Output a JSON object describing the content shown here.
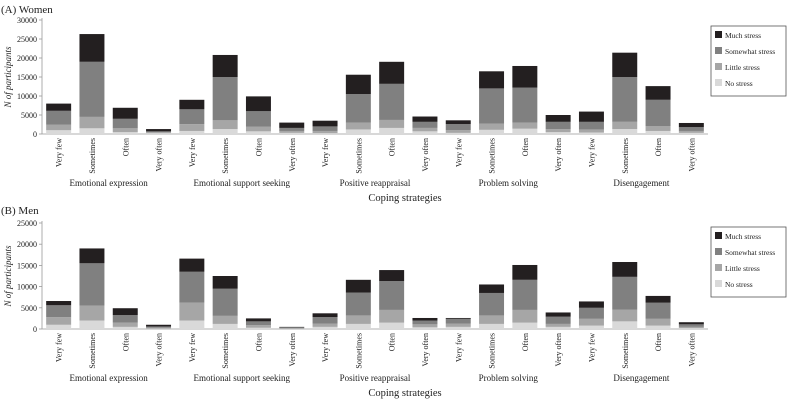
{
  "chart_data": [
    {
      "type": "bar",
      "stacked": true,
      "panel_label": "(A) Women",
      "ylabel": "N of participants",
      "xlabel": "Coping strategies",
      "ylim": [
        0,
        30000
      ],
      "yticks": [
        0,
        5000,
        10000,
        15000,
        20000,
        25000,
        30000
      ],
      "groups": [
        "Emotional expression",
        "Emotional support seeking",
        "Positive reappraisal",
        "Problem solving",
        "Disengagement"
      ],
      "categories": [
        "Very few",
        "Sometimes",
        "Often",
        "Very often"
      ],
      "series": [
        {
          "name": "No stress",
          "color": "#d9d9d9",
          "values": [
            [
              1000,
              1500,
              500,
              200
            ],
            [
              800,
              1300,
              700,
              300
            ],
            [
              200,
              1200,
              1600,
              700
            ],
            [
              300,
              1100,
              1400,
              500
            ],
            [
              400,
              1300,
              800,
              300
            ]
          ]
        },
        {
          "name": "Little stress",
          "color": "#a6a6a6",
          "values": [
            [
              1500,
              3000,
              1000,
              300
            ],
            [
              1800,
              2300,
              1200,
              500
            ],
            [
              600,
              1800,
              2100,
              900
            ],
            [
              700,
              1600,
              1600,
              800
            ],
            [
              800,
              1900,
              1300,
              500
            ]
          ]
        },
        {
          "name": "Somewhat stress",
          "color": "#808080",
          "values": [
            [
              3600,
              14500,
              2500,
              200
            ],
            [
              3900,
              11400,
              4100,
              800
            ],
            [
              1200,
              7500,
              9500,
              1600
            ],
            [
              1600,
              9300,
              9200,
              1900
            ],
            [
              2000,
              11800,
              6900,
              1000
            ]
          ]
        },
        {
          "name": "Much stress",
          "color": "#231f20",
          "values": [
            [
              1900,
              7300,
              2900,
              600
            ],
            [
              2500,
              5800,
              3900,
              1400
            ],
            [
              1500,
              5100,
              5800,
              1400
            ],
            [
              1000,
              4500,
              5700,
              1800
            ],
            [
              2700,
              6400,
              3600,
              1100
            ]
          ]
        }
      ],
      "legend": [
        "Much stress",
        "Somewhat stress",
        "Little stress",
        "No stress"
      ],
      "legend_position": "right"
    },
    {
      "type": "bar",
      "stacked": true,
      "panel_label": "(B) Men",
      "ylabel": "N of participants",
      "xlabel": "Coping strategies",
      "ylim": [
        0,
        25000
      ],
      "yticks": [
        0,
        5000,
        10000,
        15000,
        20000,
        25000
      ],
      "groups": [
        "Emotional expression",
        "Emotional support seeking",
        "Positive reappraisal",
        "Problem solving",
        "Disengagement"
      ],
      "categories": [
        "Very few",
        "Sometimes",
        "Often",
        "Very often"
      ],
      "series": [
        {
          "name": "No stress",
          "color": "#d9d9d9",
          "values": [
            [
              1000,
              2000,
              500,
              100
            ],
            [
              2000,
              1200,
              300,
              50
            ],
            [
              500,
              1200,
              1500,
              400
            ],
            [
              500,
              1200,
              1500,
              500
            ],
            [
              800,
              1800,
              800,
              200
            ]
          ]
        },
        {
          "name": "Little stress",
          "color": "#a6a6a6",
          "values": [
            [
              1800,
              3500,
              1000,
              200
            ],
            [
              4200,
              1900,
              600,
              150
            ],
            [
              800,
              2000,
              3000,
              700
            ],
            [
              800,
              2000,
              3000,
              700
            ],
            [
              1600,
              2800,
              1600,
              300
            ]
          ]
        },
        {
          "name": "Somewhat stress",
          "color": "#808080",
          "values": [
            [
              2800,
              10000,
              1800,
              300
            ],
            [
              7300,
              6400,
              900,
              200
            ],
            [
              1500,
              5400,
              6800,
              900
            ],
            [
              1100,
              5300,
              7100,
              1700
            ],
            [
              2600,
              7700,
              3800,
              600
            ]
          ]
        },
        {
          "name": "Much stress",
          "color": "#231f20",
          "values": [
            [
              1000,
              3500,
              1600,
              400
            ],
            [
              3100,
              3000,
              700,
              100
            ],
            [
              900,
              3000,
              2600,
              600
            ],
            [
              200,
              2000,
              3500,
              1000
            ],
            [
              1500,
              3500,
              1600,
              500
            ]
          ]
        }
      ],
      "legend": [
        "Much stress",
        "Somewhat stress",
        "Little stress",
        "No stress"
      ],
      "legend_position": "right"
    }
  ]
}
